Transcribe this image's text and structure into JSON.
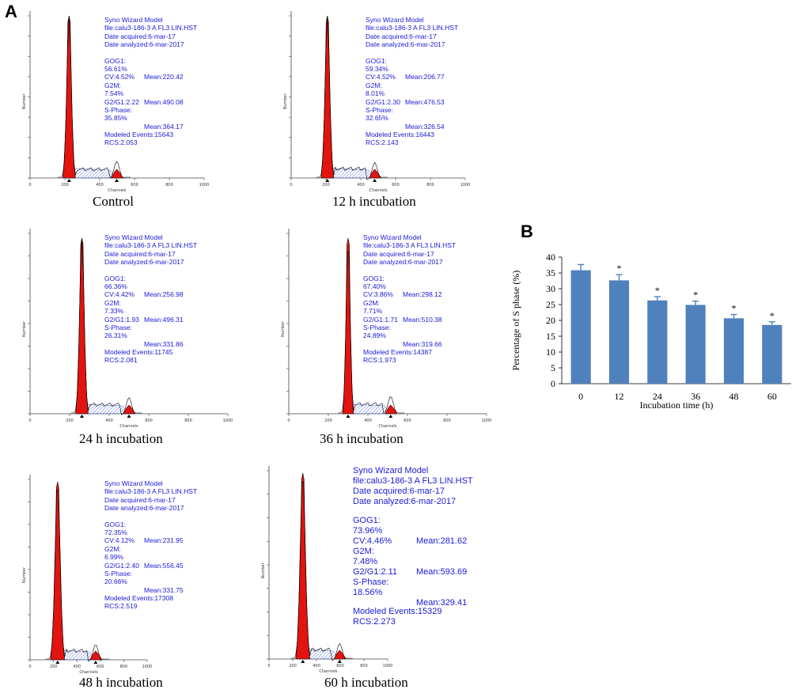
{
  "panel_a_label": "A",
  "panel_b_label": "B",
  "info_title": "Syno Wizard Model",
  "info_file": "file:calu3-186-3 A FL3 LIN.HST",
  "info_acquired": "Date acquired:6-mar-17",
  "info_analyzed": "Date analyzed:6-mar-2017",
  "label_g0g1": "GOG1:",
  "label_g2m": "G2M:",
  "label_sphase": "S-Phase:",
  "histogram_axis": {
    "xlabel": "Channels",
    "ylabel": "Number",
    "xticks": [
      "0",
      "200",
      "400",
      "600",
      "800",
      "1000"
    ]
  },
  "histograms": [
    {
      "caption": "Control",
      "g0g1_pct": "56.61%",
      "g0g1_mean": "Mean:220.42",
      "cv": "CV:4.52%",
      "g2m_pct": "7.54%",
      "g2m_mean": "Mean:490.08",
      "ratio": "G2/G1:2.22",
      "s_pct": "35.85%",
      "s_mean": "Mean:364.17",
      "events": "Modeled Events:15643",
      "rcs": "RCS:2.053"
    },
    {
      "caption": "12 h incubation",
      "g0g1_pct": "59.34%",
      "g0g1_mean": "Mean:206.77",
      "cv": "CV:4.52%",
      "g2m_pct": "8.01%",
      "g2m_mean": "Mean:476.53",
      "ratio": "G2/G1:2.30",
      "s_pct": "32.65%",
      "s_mean": "Mean:326.54",
      "events": "Modeled Events:16443",
      "rcs": "RCS:2.143"
    },
    {
      "caption": "24 h incubation",
      "g0g1_pct": "66.36%",
      "g0g1_mean": "Mean:256.98",
      "cv": "CV:4.42%",
      "g2m_pct": "7.33%",
      "g2m_mean": "Mean:496.31",
      "ratio": "G2/G1:1.93",
      "s_pct": "26.31%",
      "s_mean": "Mean:331.86",
      "events": "Modeled Events:11745",
      "rcs": "RCS:2.081"
    },
    {
      "caption": "36 h incubation",
      "g0g1_pct": "67.40%",
      "g0g1_mean": "Mean:298.12",
      "cv": "CV:3.86%",
      "g2m_pct": "7.71%",
      "g2m_mean": "Mean:510.38",
      "ratio": "G2/G1:1.71",
      "s_pct": "24.89%",
      "s_mean": "Mean:319.66",
      "events": "Modeled Events:14387",
      "rcs": "RCS:1.973"
    },
    {
      "caption": "48 h incubation",
      "g0g1_pct": "72.35%",
      "g0g1_mean": "Mean:231.95",
      "cv": "CV:4.12%",
      "g2m_pct": "6.99%",
      "g2m_mean": "Mean:556.45",
      "ratio": "G2/G1:2.40",
      "s_pct": "20.66%",
      "s_mean": "Mean:331.75",
      "events": "Modeled Events:17308",
      "rcs": "RCS:2.519"
    },
    {
      "caption": "60 h incubation",
      "g0g1_pct": "73.96%",
      "g0g1_mean": "Mean:281.62",
      "cv": "CV:4.46%",
      "g2m_pct": "7.48%",
      "g2m_mean": "Mean:593.69",
      "ratio": "G2/G1:2.11",
      "s_pct": "18.56%",
      "s_mean": "Mean:329.41",
      "events": "Modeled Events:15329",
      "rcs": "RCS:2.273"
    }
  ],
  "colors": {
    "peak": "#e3140f",
    "bar": "#4f81bd",
    "info_text": "#1a1ad6"
  },
  "chart_data": {
    "type": "bar",
    "categories": [
      "0",
      "12",
      "24",
      "36",
      "48",
      "60"
    ],
    "values": [
      35.85,
      32.65,
      26.31,
      24.89,
      20.66,
      18.56
    ],
    "errors": [
      1.8,
      1.8,
      1.2,
      1.2,
      1.2,
      1.0
    ],
    "significance": [
      "",
      "*",
      "*",
      "*",
      "*",
      "*"
    ],
    "xlabel": "Incubation time (h)",
    "ylabel": "Percentage of S phase (%)",
    "ylim": [
      0,
      40
    ],
    "yticks": [
      0,
      5,
      10,
      15,
      20,
      25,
      30,
      35,
      40
    ]
  }
}
